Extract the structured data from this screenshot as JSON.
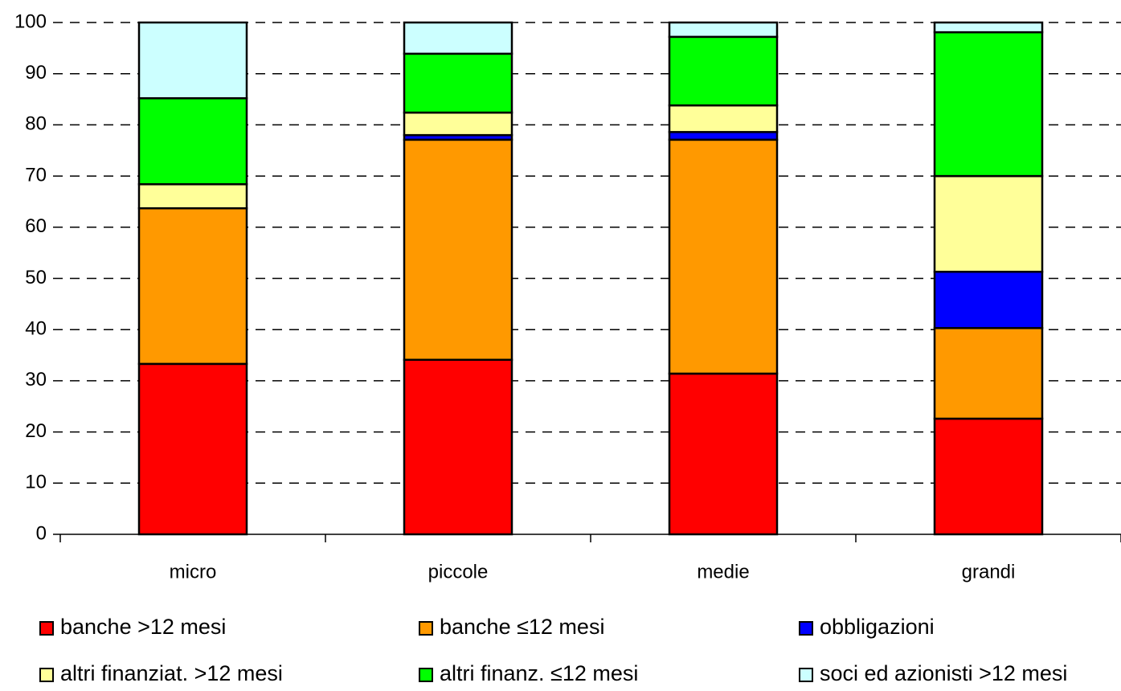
{
  "chart_data": {
    "type": "stacked_bar",
    "categories": [
      "micro",
      "piccole",
      "medie",
      "grandi"
    ],
    "series": [
      {
        "name": "banche >12 mesi",
        "color": "#ff0000",
        "values": [
          33.3,
          34.1,
          31.4,
          22.6
        ]
      },
      {
        "name": "banche ≤12 mesi",
        "color": "#ff9900",
        "values": [
          30.4,
          43.0,
          45.7,
          17.7
        ]
      },
      {
        "name": "obbligazioni",
        "color": "#0000ff",
        "values": [
          0,
          0.9,
          1.5,
          11.0
        ]
      },
      {
        "name": "altri finanziat. >12 mesi",
        "color": "#ffff99",
        "values": [
          4.7,
          4.4,
          5.2,
          18.7
        ]
      },
      {
        "name": "altri finanz. ≤12 mesi",
        "color": "#00ff00",
        "values": [
          16.8,
          11.5,
          13.4,
          28.1
        ]
      },
      {
        "name": "soci ed azionisti >12 mesi",
        "color": "#ccffff",
        "values": [
          14.8,
          6.1,
          2.8,
          1.9
        ]
      }
    ],
    "ylim": [
      0,
      100
    ],
    "yticks": [
      0,
      10,
      20,
      30,
      40,
      50,
      60,
      70,
      80,
      90,
      100
    ],
    "grid": true,
    "legend": "bottom"
  }
}
